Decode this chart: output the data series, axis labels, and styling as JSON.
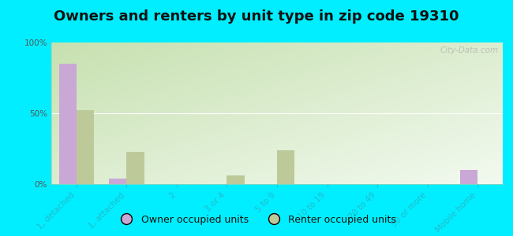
{
  "title": "Owners and renters by unit type in zip code 19310",
  "categories": [
    "1, detached",
    "1, attached",
    "2",
    "3 or 4",
    "5 to 9",
    "10 to 19",
    "20 to 49",
    "50 or more",
    "Mobile home"
  ],
  "owner_values": [
    85,
    4,
    0,
    0,
    0,
    0,
    0,
    0,
    10
  ],
  "renter_values": [
    52,
    23,
    0,
    6,
    24,
    0,
    0,
    0,
    0
  ],
  "owner_color": "#c9a8d5",
  "renter_color": "#bec99a",
  "background_color": "#00eeff",
  "bar_width": 0.35,
  "ylim": [
    0,
    100
  ],
  "yticks": [
    0,
    50,
    100
  ],
  "ytick_labels": [
    "0%",
    "50%",
    "100%"
  ],
  "legend_owner": "Owner occupied units",
  "legend_renter": "Renter occupied units",
  "watermark": "City-Data.com",
  "title_fontsize": 13,
  "tick_fontsize": 7.5,
  "legend_fontsize": 9,
  "grad_top_left": "#b8d9b0",
  "grad_bottom_right": "#f0f8ee"
}
